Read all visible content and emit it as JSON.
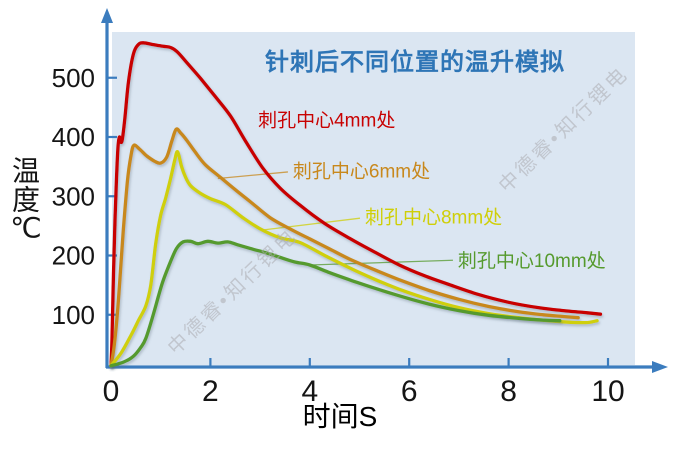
{
  "watermark": {
    "text": "中德睿•知行锂电"
  },
  "style": {
    "axis_color": "#3B7CBE",
    "plot_bg": "#DBE6F2",
    "title_color": "#2E75B6",
    "text_color": "#151515",
    "watermark_color": "#ACACB2",
    "background": "#FFFFFF"
  },
  "chart_data": {
    "type": "line",
    "title": "针刺后不同位置的温升模拟",
    "xlabel": "时间S",
    "ylabel": "温度℃",
    "xlim": [
      0,
      11.2
    ],
    "ylim": [
      0,
      600
    ],
    "x_ticks": [
      0,
      2,
      4,
      6,
      8,
      10
    ],
    "y_ticks": [
      100,
      200,
      300,
      400,
      500
    ],
    "grid": false,
    "legend_position": "inline-labels",
    "series": [
      {
        "id": "4mm",
        "name": "刺孔中心4mm处",
        "color": "#C80202",
        "label_pos": {
          "t": 2.96,
          "T": 427
        },
        "leader": null,
        "points": [
          [
            0,
            14
          ],
          [
            0.02,
            60
          ],
          [
            0.05,
            170
          ],
          [
            0.08,
            260
          ],
          [
            0.11,
            330
          ],
          [
            0.14,
            383
          ],
          [
            0.17,
            400
          ],
          [
            0.2,
            391
          ],
          [
            0.23,
            397
          ],
          [
            0.28,
            432
          ],
          [
            0.35,
            492
          ],
          [
            0.45,
            540
          ],
          [
            0.55,
            556
          ],
          [
            0.65,
            559
          ],
          [
            0.85,
            556
          ],
          [
            1.05,
            553
          ],
          [
            1.2,
            551
          ],
          [
            1.33,
            544
          ],
          [
            1.5,
            528
          ],
          [
            1.8,
            499
          ],
          [
            2.1,
            468
          ],
          [
            2.4,
            436
          ],
          [
            2.7,
            394
          ],
          [
            3.05,
            348
          ],
          [
            3.4,
            314
          ],
          [
            3.8,
            285
          ],
          [
            4.3,
            254
          ],
          [
            4.8,
            229
          ],
          [
            5.3,
            206
          ],
          [
            5.8,
            184
          ],
          [
            6.3,
            166
          ],
          [
            6.8,
            151
          ],
          [
            7.4,
            134
          ],
          [
            8.0,
            121
          ],
          [
            8.6,
            112
          ],
          [
            9.1,
            107
          ],
          [
            9.5,
            104
          ],
          [
            9.85,
            101
          ]
        ]
      },
      {
        "id": "6mm",
        "name": "刺孔中心6mm处",
        "color": "#C8881C",
        "label_pos": {
          "t": 3.66,
          "T": 341
        },
        "leader": [
          2.15,
          330,
          3.56,
          341
        ],
        "points": [
          [
            0,
            14
          ],
          [
            0.06,
            45
          ],
          [
            0.12,
            95
          ],
          [
            0.18,
            160
          ],
          [
            0.25,
            245
          ],
          [
            0.33,
            325
          ],
          [
            0.4,
            368
          ],
          [
            0.46,
            386
          ],
          [
            0.58,
            379
          ],
          [
            0.72,
            368
          ],
          [
            0.88,
            359
          ],
          [
            1.0,
            356
          ],
          [
            1.12,
            366
          ],
          [
            1.22,
            392
          ],
          [
            1.31,
            413
          ],
          [
            1.4,
            407
          ],
          [
            1.52,
            395
          ],
          [
            1.7,
            374
          ],
          [
            1.9,
            353
          ],
          [
            2.2,
            332
          ],
          [
            2.5,
            311
          ],
          [
            2.8,
            291
          ],
          [
            3.2,
            264
          ],
          [
            3.6,
            245
          ],
          [
            4.0,
            228
          ],
          [
            4.4,
            211
          ],
          [
            4.8,
            194
          ],
          [
            5.3,
            176
          ],
          [
            5.8,
            159
          ],
          [
            6.4,
            141
          ],
          [
            7.0,
            126
          ],
          [
            7.6,
            114
          ],
          [
            8.2,
            105
          ],
          [
            8.7,
            100
          ],
          [
            9.1,
            97
          ],
          [
            9.4,
            95
          ]
        ]
      },
      {
        "id": "8mm",
        "name": "刺孔中心8mm处",
        "color": "#CFCF08",
        "label_pos": {
          "t": 5.11,
          "T": 263
        },
        "leader": [
          3.05,
          243,
          5.01,
          263
        ],
        "points": [
          [
            0,
            14
          ],
          [
            0.2,
            35
          ],
          [
            0.4,
            65
          ],
          [
            0.55,
            90
          ],
          [
            0.7,
            115
          ],
          [
            0.8,
            150
          ],
          [
            0.9,
            220
          ],
          [
            1.0,
            268
          ],
          [
            1.1,
            297
          ],
          [
            1.2,
            330
          ],
          [
            1.28,
            360
          ],
          [
            1.34,
            375
          ],
          [
            1.42,
            350
          ],
          [
            1.5,
            332
          ],
          [
            1.6,
            318
          ],
          [
            1.78,
            306
          ],
          [
            2.0,
            296
          ],
          [
            2.3,
            286
          ],
          [
            2.65,
            264
          ],
          [
            3.0,
            245
          ],
          [
            3.4,
            230
          ],
          [
            3.8,
            222
          ],
          [
            4.3,
            200
          ],
          [
            4.8,
            179
          ],
          [
            5.3,
            160
          ],
          [
            5.8,
            143
          ],
          [
            6.4,
            126
          ],
          [
            7.0,
            112
          ],
          [
            7.6,
            102
          ],
          [
            8.2,
            95
          ],
          [
            8.8,
            90
          ],
          [
            9.3,
            87
          ],
          [
            9.6,
            87
          ],
          [
            9.78,
            90
          ]
        ]
      },
      {
        "id": "10mm",
        "name": "刺孔中心10mm处",
        "color": "#559A2D",
        "label_pos": {
          "t": 6.98,
          "T": 190
        },
        "leader": [
          4.0,
          184,
          6.88,
          192
        ],
        "points": [
          [
            0,
            14
          ],
          [
            0.25,
            20
          ],
          [
            0.45,
            30
          ],
          [
            0.6,
            45
          ],
          [
            0.7,
            60
          ],
          [
            0.85,
            100
          ],
          [
            0.95,
            130
          ],
          [
            1.05,
            158
          ],
          [
            1.2,
            190
          ],
          [
            1.32,
            212
          ],
          [
            1.45,
            223
          ],
          [
            1.6,
            224
          ],
          [
            1.75,
            220
          ],
          [
            1.95,
            224
          ],
          [
            2.15,
            221
          ],
          [
            2.35,
            223
          ],
          [
            2.55,
            218
          ],
          [
            2.8,
            212
          ],
          [
            3.1,
            205
          ],
          [
            3.4,
            197
          ],
          [
            3.7,
            189
          ],
          [
            4.0,
            184
          ],
          [
            4.4,
            171
          ],
          [
            4.8,
            159
          ],
          [
            5.3,
            145
          ],
          [
            5.8,
            132
          ],
          [
            6.4,
            118
          ],
          [
            7.0,
            107
          ],
          [
            7.6,
            99
          ],
          [
            8.2,
            94
          ],
          [
            8.7,
            91
          ],
          [
            9.03,
            90
          ]
        ]
      }
    ]
  }
}
